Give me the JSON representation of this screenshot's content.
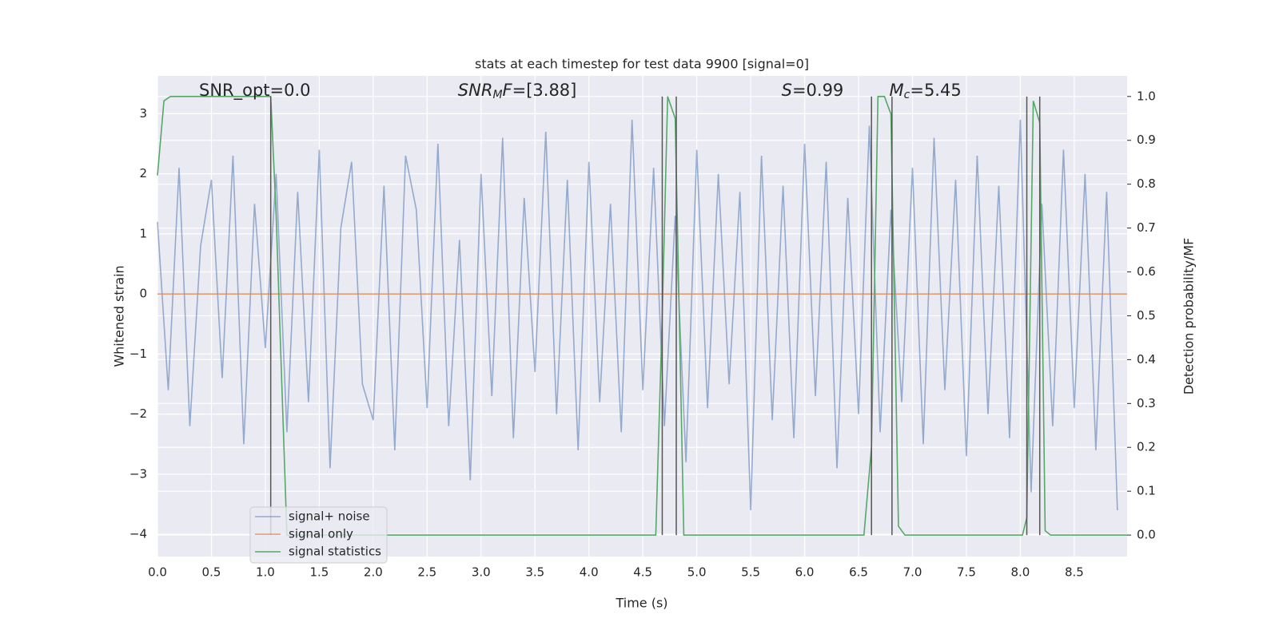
{
  "chart_data": {
    "type": "line",
    "title": "stats at each timestep for test data 9900 [signal=0]",
    "x_label": "Time (s)",
    "y_label": "Whitened strain",
    "y2_label": "Detection probability/MF",
    "xlim": [
      0,
      8.99
    ],
    "ylim": [
      -4.37,
      3.63
    ],
    "y2lim": [
      -0.049,
      1.047
    ],
    "xticks": [
      {
        "value": 0,
        "label": "0.0"
      },
      {
        "value": 0.5,
        "label": "0.5"
      },
      {
        "value": 1,
        "label": "1.0"
      },
      {
        "value": 1.5,
        "label": "1.5"
      },
      {
        "value": 2,
        "label": "2.0"
      },
      {
        "value": 2.5,
        "label": "2.5"
      },
      {
        "value": 3,
        "label": "3.0"
      },
      {
        "value": 3.5,
        "label": "3.5"
      },
      {
        "value": 4,
        "label": "4.0"
      },
      {
        "value": 4.5,
        "label": "4.5"
      },
      {
        "value": 5,
        "label": "5.0"
      },
      {
        "value": 5.5,
        "label": "5.5"
      },
      {
        "value": 6,
        "label": "6.0"
      },
      {
        "value": 6.5,
        "label": "6.5"
      },
      {
        "value": 7,
        "label": "7.0"
      },
      {
        "value": 7.5,
        "label": "7.5"
      },
      {
        "value": 8,
        "label": "8.0"
      },
      {
        "value": 8.5,
        "label": "8.5"
      }
    ],
    "yticks": [
      {
        "value": -4,
        "label": "−4"
      },
      {
        "value": -3,
        "label": "−3"
      },
      {
        "value": -2,
        "label": "−2"
      },
      {
        "value": -1,
        "label": "−1"
      },
      0,
      1,
      2,
      3
    ],
    "y2ticks": [
      {
        "value": 0,
        "label": "0.0"
      },
      {
        "value": 0.1,
        "label": "0.1"
      },
      {
        "value": 0.2,
        "label": "0.2"
      },
      {
        "value": 0.3,
        "label": "0.3"
      },
      {
        "value": 0.4,
        "label": "0.4"
      },
      {
        "value": 0.5,
        "label": "0.5"
      },
      {
        "value": 0.6,
        "label": "0.6"
      },
      {
        "value": 0.7,
        "label": "0.7"
      },
      {
        "value": 0.8,
        "label": "0.8"
      },
      {
        "value": 0.9,
        "label": "0.9"
      },
      {
        "value": 1,
        "label": "1.0"
      }
    ],
    "grid": true,
    "series": [
      {
        "name": "signal+ noise",
        "color": "#4c72b0",
        "opacity": 0.55,
        "x": [
          0,
          0.1,
          0.2,
          0.3,
          0.4,
          0.5,
          0.6,
          0.7,
          0.8,
          0.9,
          1,
          1.1,
          1.2,
          1.3,
          1.4,
          1.5,
          1.6,
          1.7,
          1.8,
          1.9,
          2,
          2.1,
          2.2,
          2.3,
          2.4,
          2.5,
          2.6,
          2.7,
          2.8,
          2.9,
          3,
          3.1,
          3.2,
          3.3,
          3.4,
          3.5,
          3.6,
          3.7,
          3.8,
          3.9,
          4,
          4.1,
          4.2,
          4.3,
          4.4,
          4.5,
          4.6,
          4.7,
          4.8,
          4.9,
          5,
          5.1,
          5.2,
          5.3,
          5.4,
          5.5,
          5.6,
          5.7,
          5.8,
          5.9,
          6,
          6.1,
          6.2,
          6.3,
          6.4,
          6.5,
          6.6,
          6.7,
          6.8,
          6.9,
          7,
          7.1,
          7.2,
          7.3,
          7.4,
          7.5,
          7.6,
          7.7,
          7.8,
          7.9,
          8,
          8.1,
          8.2,
          8.3,
          8.4,
          8.5,
          8.6,
          8.7,
          8.8,
          8.9
        ],
        "values": [
          1.2,
          -1.6,
          2.1,
          -2.2,
          0.8,
          1.9,
          -1.4,
          2.3,
          -2.5,
          1.5,
          -0.9,
          2.0,
          -2.3,
          1.7,
          -1.8,
          2.4,
          -2.9,
          1.1,
          2.2,
          -1.5,
          -2.1,
          1.8,
          -2.6,
          2.3,
          1.4,
          -1.9,
          2.5,
          -2.2,
          0.9,
          -3.1,
          2.0,
          -1.7,
          2.6,
          -2.4,
          1.6,
          -1.3,
          2.7,
          -2.0,
          1.9,
          -2.6,
          2.2,
          -1.8,
          1.5,
          -2.3,
          2.9,
          -1.6,
          2.1,
          -2.2,
          1.3,
          -2.8,
          2.4,
          -1.9,
          2.0,
          -1.5,
          1.7,
          -3.6,
          2.3,
          -2.1,
          1.8,
          -2.4,
          2.5,
          -1.7,
          2.2,
          -2.9,
          1.6,
          -2.0,
          2.8,
          -2.3,
          1.4,
          -1.8,
          2.1,
          -2.5,
          2.6,
          -1.6,
          1.9,
          -2.7,
          2.3,
          -2.0,
          1.8,
          -2.4,
          2.9,
          -3.3,
          1.5,
          -2.2,
          2.4,
          -1.9,
          2.0,
          -2.6,
          1.7,
          -3.6
        ]
      },
      {
        "name": "signal only",
        "color": "#dd8452",
        "opacity": 0.8,
        "x": [
          0,
          8.99
        ],
        "values": [
          0,
          0
        ]
      },
      {
        "name": "signal statistics",
        "color": "#55a868",
        "opacity": 1,
        "axis": "y2",
        "x": [
          0,
          0.06,
          0.12,
          1.05,
          1.1,
          1.2,
          4.62,
          4.68,
          4.73,
          4.8,
          4.88,
          6.55,
          6.62,
          6.68,
          6.74,
          6.8,
          6.87,
          6.93,
          8.02,
          8.06,
          8.12,
          8.18,
          8.23,
          8.28,
          8.99
        ],
        "values": [
          0.82,
          0.99,
          1.0,
          1.0,
          0.73,
          0.0,
          0.0,
          0.5,
          1.0,
          0.95,
          0.0,
          0.0,
          0.2,
          1.0,
          1.0,
          0.96,
          0.02,
          0.0,
          0.0,
          0.04,
          0.99,
          0.94,
          0.01,
          0.0,
          0.0
        ]
      }
    ],
    "vlines": {
      "x": [
        1.05,
        4.68,
        4.81,
        6.62,
        6.81,
        8.06,
        8.18
      ],
      "y2_range": [
        0,
        1
      ],
      "color": "#555555"
    },
    "annotations": [
      {
        "x": 0.2,
        "parts": [
          {
            "text": "SNR_opt=0.0",
            "style": "normal"
          }
        ]
      },
      {
        "x": 2.6,
        "parts": [
          {
            "text": "SNR",
            "style": "italic"
          },
          {
            "text": "M",
            "style": "sub"
          },
          {
            "text": "F",
            "style": "italic"
          },
          {
            "text": "=[3.88]",
            "style": "normal"
          }
        ]
      },
      {
        "x": 5.6,
        "parts": [
          {
            "text": "S",
            "style": "italic"
          },
          {
            "text": "=0.99",
            "style": "normal"
          }
        ]
      },
      {
        "x": 6.6,
        "parts": [
          {
            "text": "M",
            "style": "italic"
          },
          {
            "text": "c",
            "style": "sub"
          },
          {
            "text": "=5.45",
            "style": "normal"
          }
        ]
      }
    ],
    "legend": "lower left"
  }
}
